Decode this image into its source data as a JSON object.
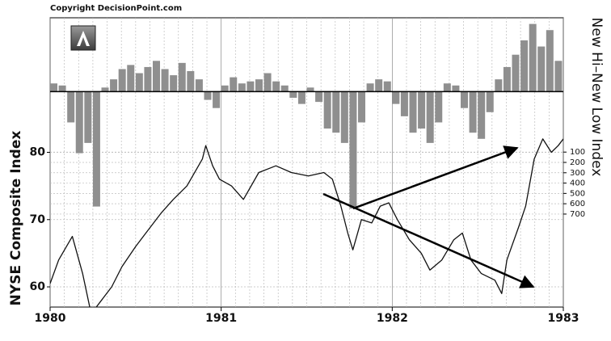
{
  "chart_data": {
    "type": "line",
    "copyright": "Copyright DecisionPoint.com",
    "ylabel": "NYSE Composite Index",
    "y2label": "New Hi–New Low Index",
    "xlim": [
      1980,
      1983
    ],
    "xticks": [
      1980,
      1981,
      1982,
      1983
    ],
    "ylim": [
      57,
      100
    ],
    "yticks": [
      60,
      70,
      80
    ],
    "y2lim": [
      -1200,
      1600
    ],
    "y2ticks": [
      100,
      200,
      300,
      400,
      500,
      600,
      700
    ],
    "y2_inverted": true,
    "y3lim": [
      -1050,
      360
    ],
    "grid": true,
    "series": [
      {
        "name": "NYSE Composite",
        "color": "#111111",
        "x": [
          1980.0,
          1980.05,
          1980.13,
          1980.19,
          1980.24,
          1980.3,
          1980.36,
          1980.42,
          1980.5,
          1980.56,
          1980.65,
          1980.72,
          1980.8,
          1980.89,
          1980.91,
          1980.95,
          1980.99,
          1981.06,
          1981.13,
          1981.22,
          1981.32,
          1981.41,
          1981.51,
          1981.6,
          1981.65,
          1981.7,
          1981.74,
          1981.77,
          1981.82,
          1981.88,
          1981.93,
          1981.98,
          1982.03,
          1982.1,
          1982.17,
          1982.22,
          1982.29,
          1982.36,
          1982.41,
          1982.46,
          1982.52,
          1982.6,
          1982.64,
          1982.67,
          1982.74,
          1982.78,
          1982.83,
          1982.88,
          1982.93,
          1982.97,
          1983.0
        ],
        "values": [
          60.5,
          64,
          67.5,
          62,
          56,
          58,
          60,
          63,
          66,
          68,
          71,
          73,
          75,
          79,
          81,
          78,
          76,
          75,
          73,
          77,
          78,
          77,
          76.5,
          77,
          76,
          72,
          68,
          65.5,
          70,
          69.5,
          72,
          72.5,
          70,
          67,
          65,
          62.5,
          64,
          67,
          68,
          64,
          62,
          61,
          59,
          64,
          69,
          72,
          79,
          82,
          80,
          81,
          82
        ]
      },
      {
        "name": "New Hi–New Low",
        "color": "#8f8f8f",
        "axis": "y3",
        "kind": "bar",
        "x": [
          1980.0,
          1980.05,
          1980.1,
          1980.15,
          1980.2,
          1980.25,
          1980.3,
          1980.35,
          1980.4,
          1980.45,
          1980.5,
          1980.55,
          1980.6,
          1980.65,
          1980.7,
          1980.75,
          1980.8,
          1980.85,
          1980.9,
          1980.95,
          1981.0,
          1981.05,
          1981.1,
          1981.15,
          1981.2,
          1981.25,
          1981.3,
          1981.35,
          1981.4,
          1981.45,
          1981.5,
          1981.55,
          1981.6,
          1981.65,
          1981.7,
          1981.75,
          1981.8,
          1981.85,
          1981.9,
          1981.95,
          1982.0,
          1982.05,
          1982.1,
          1982.15,
          1982.2,
          1982.25,
          1982.3,
          1982.35,
          1982.4,
          1982.45,
          1982.5,
          1982.55,
          1982.6,
          1982.65,
          1982.7,
          1982.75,
          1982.8,
          1982.85,
          1982.9,
          1982.95
        ],
        "values": [
          40,
          30,
          -150,
          -300,
          -250,
          -560,
          20,
          60,
          110,
          130,
          90,
          120,
          150,
          110,
          80,
          140,
          100,
          60,
          -40,
          -80,
          30,
          70,
          40,
          50,
          60,
          90,
          50,
          30,
          -30,
          -60,
          20,
          -50,
          -180,
          -200,
          -250,
          -570,
          -150,
          40,
          60,
          50,
          -60,
          -120,
          -200,
          -180,
          -250,
          -150,
          40,
          30,
          -80,
          -200,
          -230,
          -100,
          60,
          120,
          180,
          250,
          330,
          220,
          300,
          150
        ]
      }
    ]
  }
}
